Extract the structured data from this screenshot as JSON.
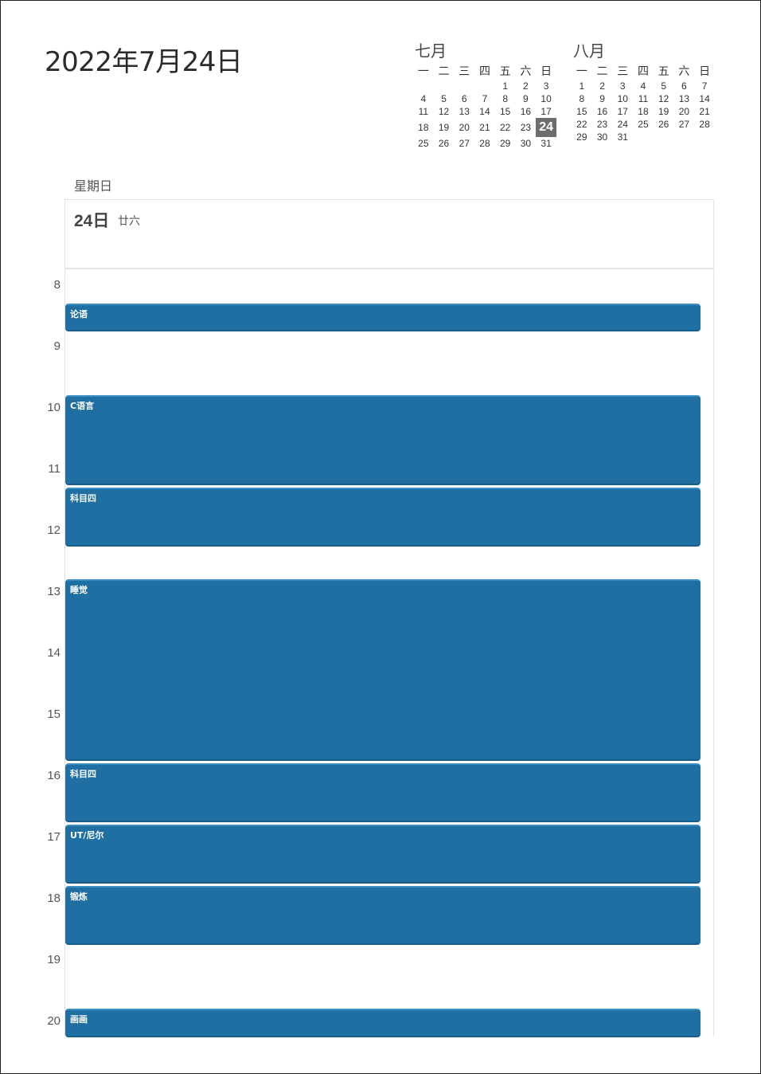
{
  "page": {
    "date_title": "2022年7月24日",
    "weekday": "星期日",
    "day_number": "24日",
    "lunar_date": "廿六"
  },
  "mini_calendars": [
    {
      "month": "七月",
      "weekdays": [
        "一",
        "二",
        "三",
        "四",
        "五",
        "六",
        "日"
      ],
      "weeks": [
        [
          "",
          "",
          "",
          "",
          "1",
          "2",
          "3"
        ],
        [
          "4",
          "5",
          "6",
          "7",
          "8",
          "9",
          "10"
        ],
        [
          "11",
          "12",
          "13",
          "14",
          "15",
          "16",
          "17"
        ],
        [
          "18",
          "19",
          "20",
          "21",
          "22",
          "23",
          "24"
        ],
        [
          "25",
          "26",
          "27",
          "28",
          "29",
          "30",
          "31"
        ]
      ],
      "today": "24"
    },
    {
      "month": "八月",
      "weekdays": [
        "一",
        "二",
        "三",
        "四",
        "五",
        "六",
        "日"
      ],
      "weeks": [
        [
          "1",
          "2",
          "3",
          "4",
          "5",
          "6",
          "7"
        ],
        [
          "8",
          "9",
          "10",
          "11",
          "12",
          "13",
          "14"
        ],
        [
          "15",
          "16",
          "17",
          "18",
          "19",
          "20",
          "21"
        ],
        [
          "22",
          "23",
          "24",
          "25",
          "26",
          "27",
          "28"
        ],
        [
          "29",
          "30",
          "31",
          "",
          "",
          "",
          ""
        ]
      ],
      "today": ""
    }
  ],
  "hours": [
    "8",
    "9",
    "10",
    "11",
    "12",
    "13",
    "14",
    "15",
    "16",
    "17",
    "18",
    "19",
    "20"
  ],
  "events": [
    {
      "title": "论语",
      "start": 8.5,
      "end": 9.0
    },
    {
      "title": "C语言",
      "start": 10.0,
      "end": 11.5
    },
    {
      "title": "科目四",
      "start": 11.5,
      "end": 12.5
    },
    {
      "title": "睡觉",
      "start": 13.0,
      "end": 16.0
    },
    {
      "title": "科目四",
      "start": 16.0,
      "end": 17.0
    },
    {
      "title": "UT/尼尔",
      "start": 17.0,
      "end": 18.0
    },
    {
      "title": "锻炼",
      "start": 18.0,
      "end": 19.0
    },
    {
      "title": "画画",
      "start": 20.0,
      "end": 20.5
    }
  ],
  "colors": {
    "event_fill": "#1f6fa3",
    "today_highlight": "#6d6d6d"
  }
}
